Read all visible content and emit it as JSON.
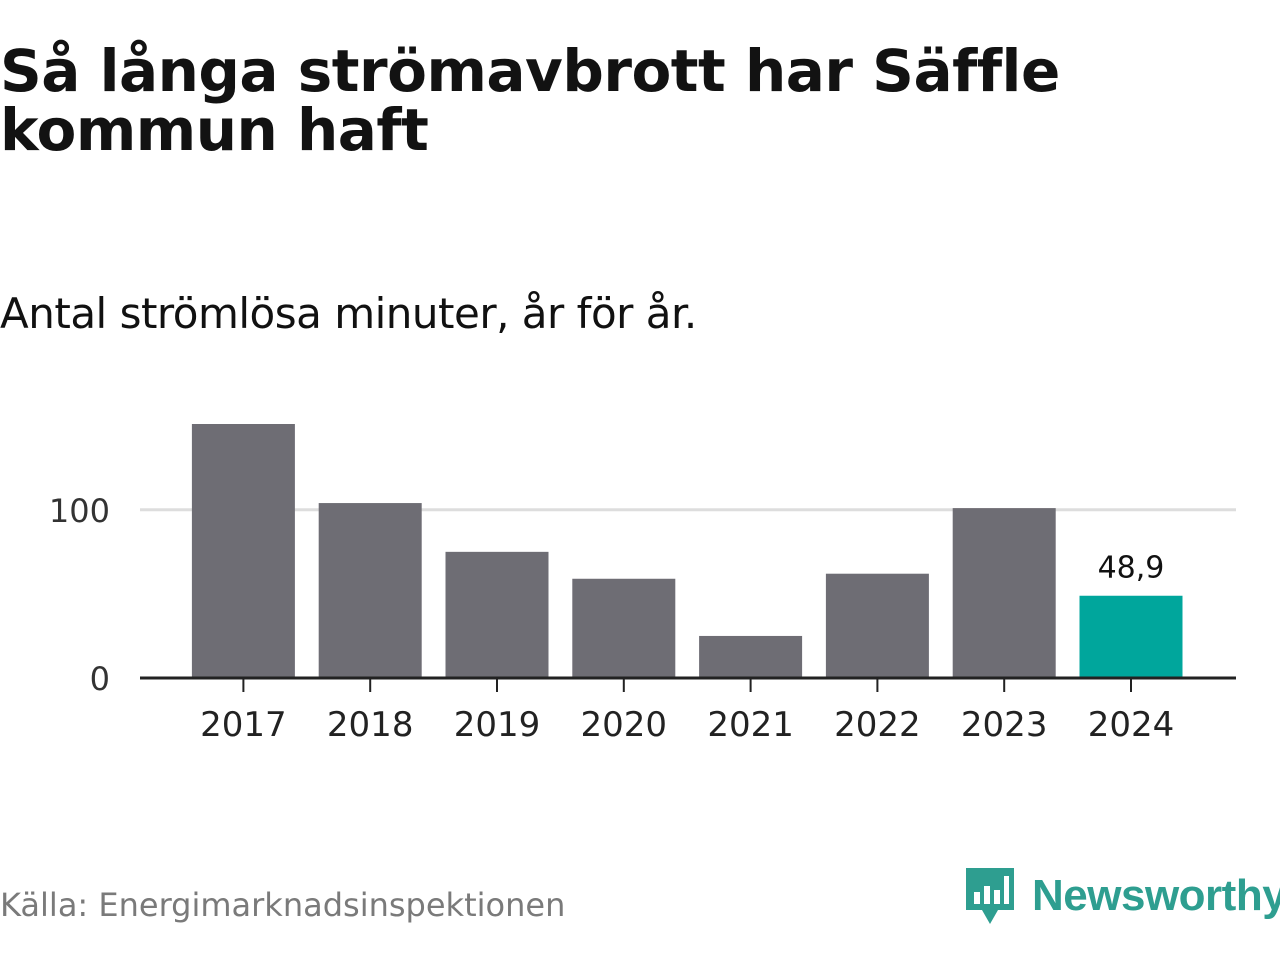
{
  "title": "Så långa strömavbrott har Säffle kommun haft",
  "subtitle": "Antal strömlösa minuter, år för år.",
  "source": "Källa: Energimarknadsinspektionen",
  "brand": {
    "name": "Newsworthy",
    "logo_icon": "newsworthy-bar-chart-speech-bubble-icon"
  },
  "colors": {
    "bar": "#6e6d74",
    "highlight": "#00a69c",
    "grid": "#dddddd",
    "axis": "#222222",
    "brand": "#2e9e90",
    "source_text": "#7a7a7a"
  },
  "chart_data": {
    "type": "bar",
    "title": "Så långa strömavbrott har Säffle kommun haft",
    "subtitle": "Antal strömlösa minuter, år för år.",
    "xlabel": "",
    "ylabel": "",
    "categories": [
      "2017",
      "2018",
      "2019",
      "2020",
      "2021",
      "2022",
      "2023",
      "2024"
    ],
    "values": [
      151,
      104,
      75,
      59,
      25,
      62,
      101,
      48.9
    ],
    "highlight_index": 7,
    "data_labels": [
      {
        "index": 7,
        "text": "48,9"
      }
    ],
    "yticks": [
      {
        "value": 0,
        "label": "0"
      },
      {
        "value": 100,
        "label": "100"
      }
    ],
    "ylim": [
      0,
      151
    ],
    "grid": true,
    "legend": "none"
  }
}
